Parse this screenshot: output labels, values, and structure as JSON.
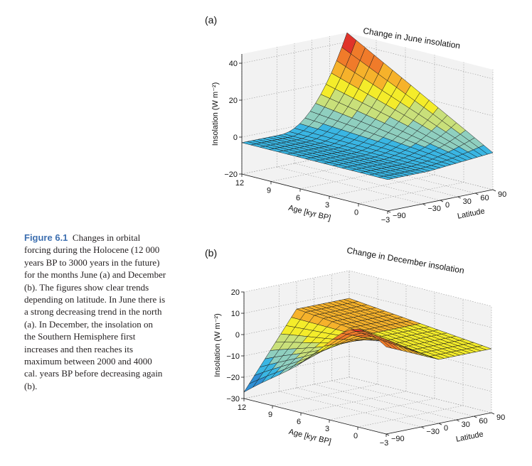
{
  "caption": {
    "label": "Figure 6.1",
    "text": "Changes in orbital forcing during the Holocene (12 000 years BP to 3000 years in the future) for the months June (a) and December (b). The figures show clear trends depending on latitude. In June there is a strong decreasing trend in the north (a). In December, the insolation on the Southern Hemisphere first increases and then reaches its maximum between 2000 and 4000 cal. years BP before decreasing again (b)."
  },
  "colors": {
    "pane": "#f2f2f2",
    "grid": "#9a9a9a",
    "colormap": [
      "#1f5fb4",
      "#2f8fd4",
      "#3ab6e3",
      "#8fcfbf",
      "#c9e07a",
      "#f4ec2a",
      "#f6b22b",
      "#f07b2a",
      "#e0332a"
    ]
  },
  "chart_data": [
    {
      "type": "surface",
      "panel": "(a)",
      "title": "Change in June insolation",
      "zlabel": "Insolation (W m⁻²)",
      "xlabel": "Age [kyr BP]",
      "ylabel": "Latitude",
      "x_ticks": [
        "12",
        "9",
        "6",
        "3",
        "0",
        "−3"
      ],
      "y_ticks": [
        "−90",
        "−30",
        "0",
        "30",
        "60",
        "90"
      ],
      "z_ticks": [
        "−20",
        "0",
        "20",
        "40"
      ],
      "xlim": [
        12,
        -3
      ],
      "ylim": [
        -90,
        90
      ],
      "zlim": [
        -20,
        45
      ],
      "peak": {
        "age_kyr": 12,
        "latitude": 90,
        "insolation": 45
      }
    },
    {
      "type": "surface",
      "panel": "(b)",
      "title": "Change in December insolation",
      "zlabel": "Insolation (W m⁻²)",
      "xlabel": "Age [kyr BP]",
      "ylabel": "Latitude",
      "x_ticks": [
        "12",
        "9",
        "6",
        "3",
        "0",
        "−3"
      ],
      "y_ticks": [
        "−90",
        "−30",
        "0",
        "30",
        "60",
        "90"
      ],
      "z_ticks": [
        "−30",
        "−20",
        "−10",
        "0",
        "10",
        "20"
      ],
      "xlim": [
        12,
        -3
      ],
      "ylim": [
        -90,
        90
      ],
      "zlim": [
        -30,
        20
      ],
      "max": {
        "age_kyr": 3,
        "latitude": -90,
        "insolation": 17
      },
      "min": {
        "age_kyr": 12,
        "latitude": -90,
        "insolation": -27
      }
    }
  ]
}
